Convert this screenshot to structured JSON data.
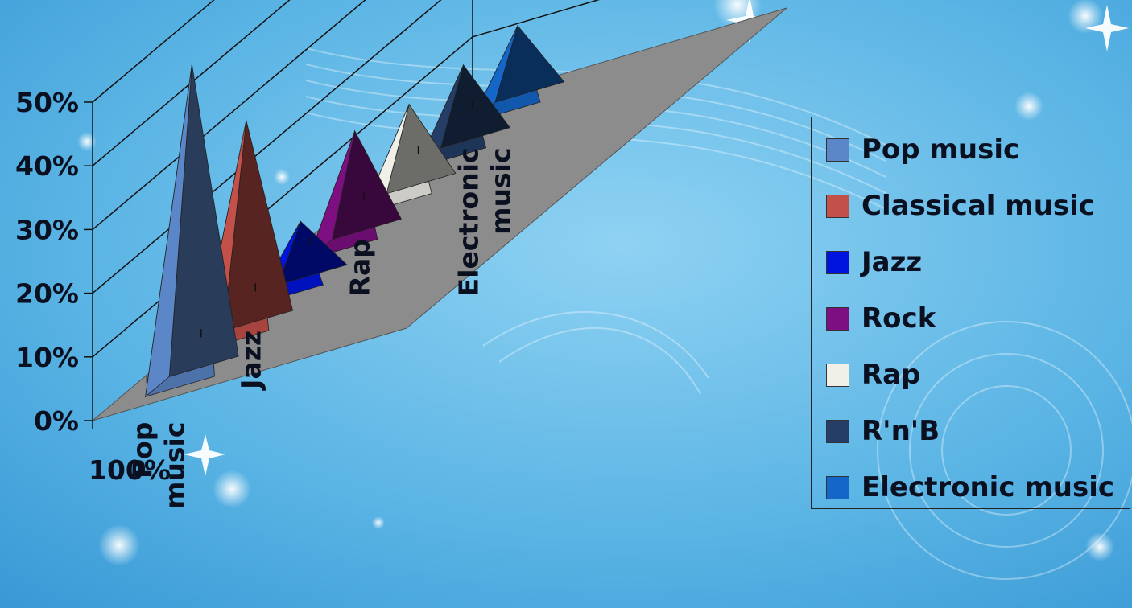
{
  "chart_data": {
    "type": "bar",
    "style": "3d-pyramid",
    "categories": [
      "Pop music",
      "Classical music",
      "Jazz",
      "Rock",
      "Rap",
      "R'n'B",
      "Electronic music"
    ],
    "category_tick_labels": [
      "Pop music",
      "Jazz",
      "Rap",
      "Electronic music"
    ],
    "series_axis_labels": [
      "100%"
    ],
    "series": [
      {
        "name": "100%",
        "values": [
          0.49,
          0.33,
          0.1,
          0.17,
          0.14,
          0.13,
          0.12
        ]
      }
    ],
    "ylim": [
      0,
      0.5
    ],
    "yticks": [
      0,
      0.1,
      0.2,
      0.3,
      0.4,
      0.5
    ],
    "ytick_labels": [
      "0%",
      "10%",
      "20%",
      "30%",
      "40%",
      "50%"
    ],
    "grid": true,
    "legend_position": "right",
    "title": "",
    "xlabel": "",
    "ylabel": ""
  },
  "legend": {
    "items": [
      {
        "label": "Pop music",
        "color": "#5b86c7"
      },
      {
        "label": "Classical music",
        "color": "#c4504a"
      },
      {
        "label": "Jazz",
        "color": "#0014e0"
      },
      {
        "label": "Rock",
        "color": "#7d0f82"
      },
      {
        "label": "Rap",
        "color": "#f0efe8"
      },
      {
        "label": "R'n'B",
        "color": "#243e68"
      },
      {
        "label": "Electronic music",
        "color": "#1466c9"
      }
    ]
  },
  "colors": {
    "background": "#5fb8e6",
    "floor": "#8c8c8c",
    "gridline": "#111111"
  }
}
